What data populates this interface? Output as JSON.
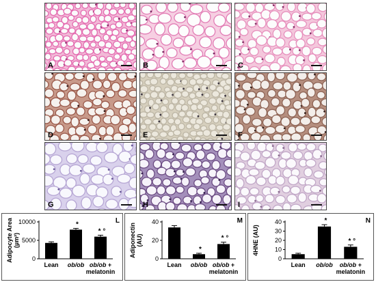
{
  "micrographs": [
    {
      "label": "A",
      "stain": "H&E",
      "cell": "#fbfbfb",
      "wall": "#e46bb0",
      "bg": "#f2b9d7",
      "nuc": "#8a2a6a",
      "cellsize": "small"
    },
    {
      "label": "B",
      "stain": "H&E",
      "cell": "#fdfdfd",
      "wall": "#e27db5",
      "bg": "#f6cfe2",
      "nuc": "#7c2a62",
      "cellsize": "large"
    },
    {
      "label": "C",
      "stain": "H&E",
      "cell": "#fcfcfc",
      "wall": "#e790bd",
      "bg": "#f4c7dc",
      "nuc": "#873368",
      "cellsize": "medium"
    },
    {
      "label": "D",
      "stain": "IHC",
      "cell": "#f6f2ee",
      "wall": "#9b5a4b",
      "bg": "#c89a8a",
      "nuc": "#3a1d1a",
      "cellsize": "medium"
    },
    {
      "label": "E",
      "stain": "IHC",
      "cell": "#ece8dd",
      "wall": "#bdb6a5",
      "bg": "#d6cfbd",
      "nuc": "#3b3440",
      "cellsize": "small"
    },
    {
      "label": "F",
      "stain": "IHC",
      "cell": "#f3eeea",
      "wall": "#8e6455",
      "bg": "#b58e7e",
      "nuc": "#3a2520",
      "cellsize": "medium"
    },
    {
      "label": "G",
      "stain": "IHC",
      "cell": "#f8f8fd",
      "wall": "#b6a6d4",
      "bg": "#d9d1ec",
      "nuc": "#6b5a9a",
      "cellsize": "large"
    },
    {
      "label": "H",
      "stain": "IHC",
      "cell": "#f6f3fa",
      "wall": "#6d4d84",
      "bg": "#a48fbb",
      "nuc": "#3a2452",
      "cellsize": "medium"
    },
    {
      "label": "I",
      "stain": "IHC",
      "cell": "#fbf9fc",
      "wall": "#c1a7c7",
      "bg": "#e1cfe0",
      "nuc": "#8a6a8e",
      "cellsize": "medium"
    }
  ],
  "chart_data": [
    {
      "type": "bar",
      "panel_label": "L",
      "ylabel": "Adipocyte Area (µm²)",
      "ylabel_main": "Adipocyte Area",
      "ylabel_unit": "(µm²)",
      "yticks": [
        "0",
        "5000",
        "10000"
      ],
      "ylim": [
        0,
        10000
      ],
      "categories": [
        "Lean",
        "ob/ob",
        "ob/ob + melatonin"
      ],
      "cat_lines": [
        [
          "Lean"
        ],
        [
          "ob/ob"
        ],
        [
          "ob/ob +",
          "melatonin"
        ]
      ],
      "values": [
        4300,
        7900,
        6000
      ],
      "errors": [
        300,
        350,
        400
      ],
      "annotations": [
        "",
        "*",
        "* °"
      ]
    },
    {
      "type": "bar",
      "panel_label": "M",
      "ylabel": "Adiponectin (AU)",
      "ylabel_main": "Adiponectin",
      "ylabel_unit": "(AU)",
      "yticks": [
        "0",
        "20",
        "40"
      ],
      "ylim": [
        0,
        40
      ],
      "categories": [
        "Lean",
        "ob/ob",
        "ob/ob + melatonin"
      ],
      "cat_lines": [
        [
          "Lean"
        ],
        [
          "ob/ob"
        ],
        [
          "ob/ob +",
          "melatonin"
        ]
      ],
      "values": [
        34,
        5,
        16
      ],
      "errors": [
        2,
        1,
        2
      ],
      "annotations": [
        "",
        "*",
        "* °"
      ]
    },
    {
      "type": "bar",
      "panel_label": "N",
      "ylabel": "4HNE (AU)",
      "ylabel_main": "4HNE (AU)",
      "ylabel_unit": "",
      "yticks": [
        "0",
        "10",
        "20",
        "30",
        "40"
      ],
      "ylim": [
        0,
        40
      ],
      "categories": [
        "Lean",
        "ob/ob",
        "ob/ob + melatonin"
      ],
      "cat_lines": [
        [
          "Lean"
        ],
        [
          "ob/ob"
        ],
        [
          "ob/ob +",
          "melatonin"
        ]
      ],
      "values": [
        5,
        35,
        13
      ],
      "errors": [
        1,
        2,
        2
      ],
      "annotations": [
        "",
        "*",
        "* °"
      ]
    }
  ],
  "colors": {
    "bar": "#000000",
    "axis": "#000000"
  }
}
